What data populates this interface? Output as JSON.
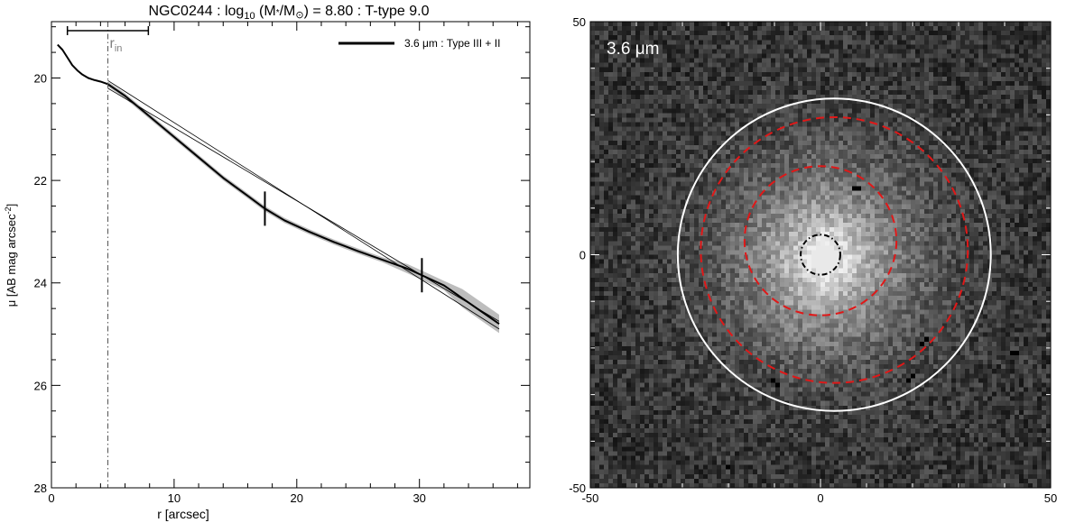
{
  "chart_data": [
    {
      "type": "line",
      "title_main": "NGC0244 : log",
      "title_sub": "10",
      "title_mid": " (M",
      "title_star": "*",
      "title_slash": "/M",
      "title_sun": "⊙",
      "title_end": ") = 8.80 : T-type 9.0",
      "xlabel": "r [arcsec]",
      "ylabel_main": "μ [AB mag arcsec",
      "ylabel_sup": "-2",
      "ylabel_end": "]",
      "xlim": [
        0,
        39
      ],
      "ylim": [
        28,
        18.9
      ],
      "xticks": [
        0,
        10,
        20,
        30
      ],
      "yticks": [
        20,
        22,
        24,
        26,
        28
      ],
      "legend": {
        "label": "3.6 μm : Type III + II",
        "position": "top-right"
      },
      "r_in": {
        "label_main": "r",
        "label_sub": "in",
        "value": 4.6,
        "bar_range": [
          1.3,
          7.9
        ]
      },
      "break_markers": [
        {
          "r": 17.4,
          "mu": 22.55
        },
        {
          "r": 30.2,
          "mu": 23.85
        }
      ],
      "series": [
        {
          "name": "3.6 μm : Type III + II",
          "x": [
            0.5,
            0.9,
            1.3,
            1.7,
            2.1,
            2.5,
            3.0,
            3.5,
            4.0,
            4.6,
            6,
            8,
            10,
            12,
            14,
            16,
            17.4,
            19,
            21,
            23,
            25,
            27,
            29,
            30.2,
            32,
            33.5,
            35,
            36.5
          ],
          "y": [
            19.35,
            19.45,
            19.6,
            19.75,
            19.85,
            19.93,
            20.0,
            20.04,
            20.07,
            20.12,
            20.35,
            20.75,
            21.15,
            21.55,
            21.95,
            22.3,
            22.55,
            22.78,
            23.0,
            23.2,
            23.38,
            23.55,
            23.72,
            23.85,
            24.05,
            24.3,
            24.55,
            24.8
          ]
        }
      ],
      "fits": [
        {
          "x": [
            4.6,
            36.5
          ],
          "y": [
            20.05,
            24.9
          ]
        },
        {
          "x": [
            4.6,
            36.5
          ],
          "y": [
            20.2,
            24.75
          ]
        }
      ]
    },
    {
      "type": "heatmap",
      "band_label": "3.6 μm",
      "xlim": [
        -50,
        50
      ],
      "ylim": [
        -50,
        50
      ],
      "xticks": [
        -50,
        0,
        50
      ],
      "yticks": [
        -50,
        0,
        50
      ],
      "ellipses": [
        {
          "kind": "outer",
          "color": "#ffffff",
          "style": "solid",
          "cx": 3,
          "cy": 0,
          "rx": 34,
          "ry": 33.5
        },
        {
          "kind": "break-outer",
          "color": "#e01818",
          "style": "dashed",
          "cx": 3,
          "cy": 1,
          "rx": 29,
          "ry": 28.5
        },
        {
          "kind": "break-inner",
          "color": "#e01818",
          "style": "dashed",
          "cx": 0,
          "cy": 3,
          "rx": 16.5,
          "ry": 16
        },
        {
          "kind": "r_in",
          "color": "#000000",
          "style": "dashdot",
          "cx": 0,
          "cy": 0,
          "rx": 4.3,
          "ry": 4.3
        }
      ]
    }
  ]
}
